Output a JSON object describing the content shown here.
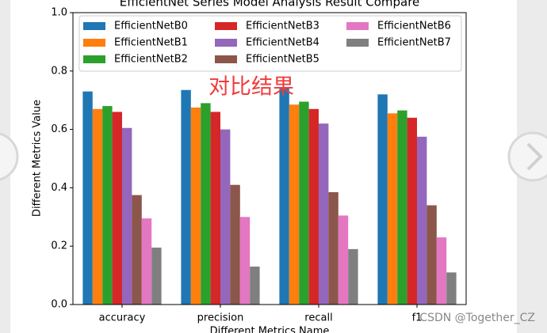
{
  "chart_data": {
    "type": "bar",
    "title": "EfficientNet Series Model Analysis Result Compare",
    "x_label": "Different Metrics Name",
    "y_label": "Different Metrics Value",
    "annotation": "对比结果",
    "watermark": "CSDN @Together_CZ",
    "categories": [
      "accuracy",
      "precision",
      "recall",
      "f1"
    ],
    "series": [
      {
        "name": "EfficientNetB0",
        "color": "#1f77b4",
        "values": [
          0.73,
          0.735,
          0.745,
          0.72
        ]
      },
      {
        "name": "EfficientNetB1",
        "color": "#ff7f0e",
        "values": [
          0.67,
          0.675,
          0.685,
          0.655
        ]
      },
      {
        "name": "EfficientNetB2",
        "color": "#2ca02c",
        "values": [
          0.68,
          0.69,
          0.695,
          0.665
        ]
      },
      {
        "name": "EfficientNetB3",
        "color": "#d62728",
        "values": [
          0.66,
          0.66,
          0.67,
          0.64
        ]
      },
      {
        "name": "EfficientNetB4",
        "color": "#9467bd",
        "values": [
          0.605,
          0.6,
          0.62,
          0.575
        ]
      },
      {
        "name": "EfficientNetB5",
        "color": "#8c564b",
        "values": [
          0.375,
          0.41,
          0.385,
          0.34
        ]
      },
      {
        "name": "EfficientNetB6",
        "color": "#e377c2",
        "values": [
          0.295,
          0.3,
          0.305,
          0.23
        ]
      },
      {
        "name": "EfficientNetB7",
        "color": "#7f7f7f",
        "values": [
          0.195,
          0.13,
          0.19,
          0.11
        ]
      }
    ],
    "ylim": [
      0,
      1
    ],
    "yticks": [
      {
        "value": 0,
        "label": "0.0"
      },
      0.2,
      0.4,
      0.6,
      0.8,
      {
        "value": 1,
        "label": "1.0"
      }
    ],
    "grid": false,
    "legend": "upper-center",
    "legend_columns": 3
  }
}
